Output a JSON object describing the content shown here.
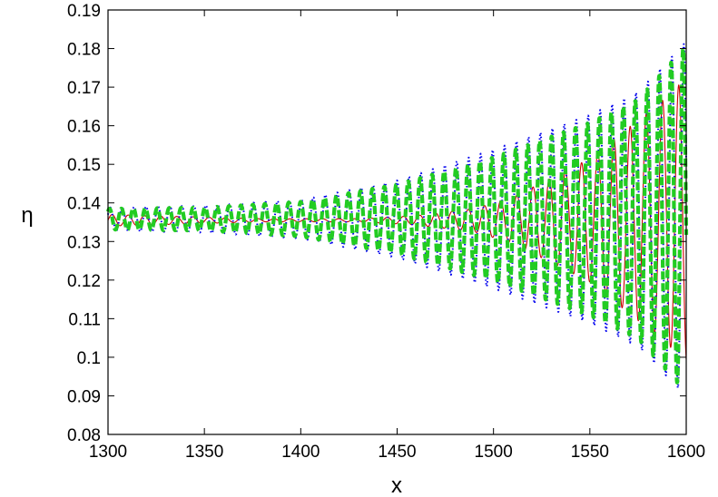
{
  "chart_data": {
    "type": "line",
    "title": "",
    "xlabel": "x",
    "ylabel": "η",
    "xlim": [
      1300,
      1600
    ],
    "ylim": [
      0.08,
      0.19
    ],
    "x_ticks": [
      "1300",
      "1350",
      "1400",
      "1450",
      "1500",
      "1550",
      "1600"
    ],
    "y_ticks": [
      "0.08",
      "0.09",
      "0.1",
      "0.11",
      "0.12",
      "0.13",
      "0.14",
      "0.15",
      "0.16",
      "0.17",
      "0.18",
      "0.19"
    ],
    "grid": false,
    "legend": "none",
    "series": [
      {
        "style": "solid-thin",
        "color": "#cc0000",
        "mean": 0.1355,
        "wavelength": 8.4,
        "envelope": [
          [
            1300,
            0.0015
          ],
          [
            1380,
            0.0004
          ],
          [
            1430,
            0.0004
          ],
          [
            1460,
            0.0012
          ],
          [
            1490,
            0.003
          ],
          [
            1510,
            0.006
          ],
          [
            1530,
            0.011
          ],
          [
            1550,
            0.016
          ],
          [
            1570,
            0.024
          ],
          [
            1590,
            0.032
          ],
          [
            1600,
            0.037
          ]
        ]
      },
      {
        "style": "dotted",
        "color": "#0000ee",
        "mean": 0.1358,
        "wavelength": 6.2,
        "envelope": [
          [
            1300,
            0.003
          ],
          [
            1350,
            0.0035
          ],
          [
            1400,
            0.005
          ],
          [
            1450,
            0.01
          ],
          [
            1500,
            0.018
          ],
          [
            1550,
            0.027
          ],
          [
            1575,
            0.033
          ],
          [
            1600,
            0.046
          ]
        ]
      },
      {
        "style": "dashed-thick",
        "color": "#22cc22",
        "mean": 0.1358,
        "wavelength": 6.2,
        "envelope": [
          [
            1300,
            0.0027
          ],
          [
            1350,
            0.003
          ],
          [
            1400,
            0.0045
          ],
          [
            1450,
            0.009
          ],
          [
            1500,
            0.016
          ],
          [
            1550,
            0.025
          ],
          [
            1575,
            0.031
          ],
          [
            1600,
            0.045
          ]
        ]
      }
    ]
  }
}
